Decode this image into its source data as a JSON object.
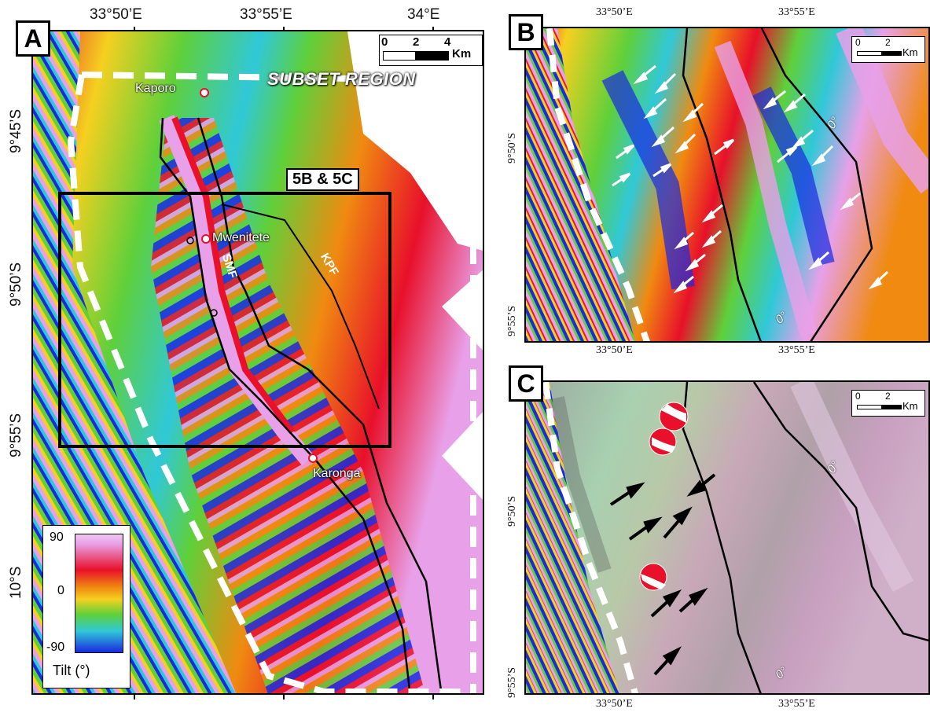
{
  "panels": {
    "a": {
      "letter": "A",
      "lon_labels": [
        "33°50’E",
        "33°55’E",
        "34°E"
      ],
      "lat_labels": [
        "9°45’S",
        "9°50’S",
        "9°55’S",
        "10°S"
      ],
      "scale": {
        "ticks": [
          "0",
          "2",
          "4"
        ],
        "unit": "Km"
      },
      "subset_label": "SUBSET REGION",
      "box_label": "5B & 5C",
      "towns": [
        "Kaporo",
        "Mwenitete",
        "Karonga"
      ],
      "faults": [
        "SMF",
        "KPF"
      ],
      "legend": {
        "max": "90",
        "mid": "0",
        "min": "-90",
        "title": "Tilt (°)"
      }
    },
    "b": {
      "letter": "B",
      "lon_labels": [
        "33°50’E",
        "33°55’E"
      ],
      "lat_labels": [
        "9°50’S",
        "9°55’S"
      ],
      "scale": {
        "ticks": [
          "0",
          "2"
        ],
        "unit": "Km"
      },
      "contour_label": "0°"
    },
    "c": {
      "letter": "C",
      "lon_labels": [
        "33°50’E",
        "33°55’E"
      ],
      "lat_labels": [
        "9°50’S",
        "9°55’S"
      ],
      "scale": {
        "ticks": [
          "0",
          "2"
        ],
        "unit": "Km"
      },
      "contour_label": "0°"
    }
  },
  "colors": {
    "tilt_high": "#e8a0e8",
    "tilt_red": "#e8102a",
    "tilt_zero": "#f08a10",
    "tilt_green": "#5fd03a",
    "tilt_cyan": "#30c8d8",
    "tilt_low": "#1a2adf"
  }
}
